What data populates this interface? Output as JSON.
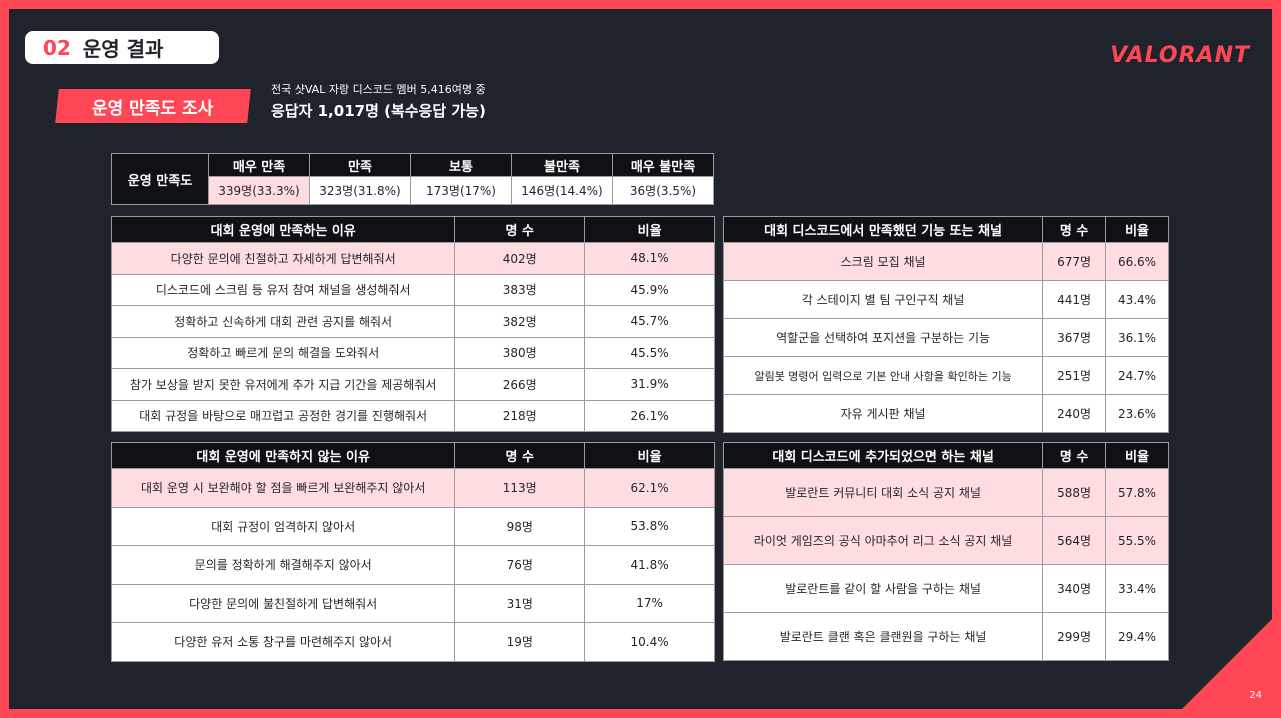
{
  "header": {
    "section_number": "02",
    "section_title": "운영 결과",
    "logo": "VALORANT",
    "page_number": "24"
  },
  "survey": {
    "tag": "운영 만족도 조사",
    "desc_line1": "전국 샷VAL 자랑 디스코드 멤버 5,416여명 중",
    "desc_line2": "응답자 1,017명 (복수응답 가능)"
  },
  "satisfaction": {
    "row_header": "운영 만족도",
    "columns": [
      "매우 만족",
      "만족",
      "보통",
      "불만족",
      "매우 불만족"
    ],
    "values": [
      "339명(33.3%)",
      "323명(31.8%)",
      "173명(17%)",
      "146명(14.4%)",
      "36명(3.5%)"
    ]
  },
  "satisfied_reasons": {
    "headers": [
      "대회 운영에 만족하는 이유",
      "명 수",
      "비율"
    ],
    "rows": [
      [
        "다양한 문의에 친절하고 자세하게 답변해줘서",
        "402명",
        "48.1%"
      ],
      [
        "디스코드에 스크림 등 유저 참여 채널을 생성해줘서",
        "383명",
        "45.9%"
      ],
      [
        "정확하고 신속하게 대회 관련 공지를 해줘서",
        "382명",
        "45.7%"
      ],
      [
        "정확하고 빠르게 문의 해결을 도와줘서",
        "380명",
        "45.5%"
      ],
      [
        "참가 보상을 받지 못한 유저에게 추가 지급 기간을 제공해줘서",
        "266명",
        "31.9%"
      ],
      [
        "대회 규정을 바탕으로 매끄럽고 공정한 경기를 진행해줘서",
        "218명",
        "26.1%"
      ]
    ]
  },
  "unsatisfied_reasons": {
    "headers": [
      "대회 운영에 만족하지 않는 이유",
      "명 수",
      "비율"
    ],
    "rows": [
      [
        "대회 운영 시 보완해야 할 점을 빠르게 보완해주지 않아서",
        "113명",
        "62.1%"
      ],
      [
        "대회 규정이 엄격하지 않아서",
        "98명",
        "53.8%"
      ],
      [
        "문의를 정확하게 해결해주지 않아서",
        "76명",
        "41.8%"
      ],
      [
        "다양한 문의에 불친절하게 답변해줘서",
        "31명",
        "17%"
      ],
      [
        "다양한 유저 소통 창구를 마련해주지 않아서",
        "19명",
        "10.4%"
      ]
    ]
  },
  "discord_features": {
    "headers": [
      "대회 디스코드에서 만족했던 기능 또는 채널",
      "명 수",
      "비율"
    ],
    "rows": [
      [
        "스크림 모집 채널",
        "677명",
        "66.6%"
      ],
      [
        "각 스테이지 별 팀 구인구직 채널",
        "441명",
        "43.4%"
      ],
      [
        "역할군을 선택하여 포지션을 구분하는 기능",
        "367명",
        "36.1%"
      ],
      [
        "알림봇 명령어 입력으로 기본 안내 사항을 확인하는 기능",
        "251명",
        "24.7%"
      ],
      [
        "자유 게시판 채널",
        "240명",
        "23.6%"
      ]
    ]
  },
  "wanted_channels": {
    "headers": [
      "대회 디스코드에 추가되었으면 하는 채널",
      "명 수",
      "비율"
    ],
    "rows": [
      [
        "발로란트 커뮤니티 대회 소식 공지 채널",
        "588명",
        "57.8%"
      ],
      [
        "라이엇 게임즈의 공식 아마추어 리그 소식 공지 채널",
        "564명",
        "55.5%"
      ],
      [
        "발로란트를 같이 할 사람을 구하는 채널",
        "340명",
        "33.4%"
      ],
      [
        "발로란트 클랜 혹은 클랜원을 구하는 채널",
        "299명",
        "29.4%"
      ]
    ]
  },
  "colors": {
    "accent": "#ff4655",
    "background": "#1f232b",
    "highlight_row": "#ffdcdf",
    "table_header": "#0f1115"
  }
}
